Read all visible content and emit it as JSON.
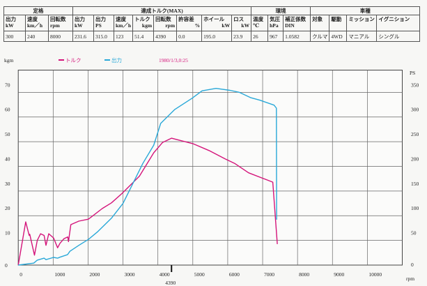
{
  "spec_table": {
    "groups": [
      "定格",
      "達成トルク(MAX)",
      "環境",
      "車種"
    ],
    "headers": [
      [
        "出力",
        "kW"
      ],
      [
        "速度",
        "km／h"
      ],
      [
        "回転数",
        "rpm"
      ],
      [
        "出力",
        "kW"
      ],
      [
        "出力",
        "PS"
      ],
      [
        "速度",
        "km／h"
      ],
      [
        "トルク",
        "kgm"
      ],
      [
        "回転数",
        "rpm"
      ],
      [
        "許容差",
        "%"
      ],
      [
        "ホイール",
        "kW"
      ],
      [
        "ロス",
        "kW"
      ],
      [
        "温度",
        "℃"
      ],
      [
        "気圧",
        "hPa"
      ],
      [
        "補正係数",
        "DIN"
      ],
      [
        "対象",
        ""
      ],
      [
        "駆動",
        ""
      ],
      [
        "ミッション",
        ""
      ],
      [
        "イグニション",
        ""
      ]
    ],
    "values": [
      "300",
      "240",
      "8000",
      "231.6",
      "315.0",
      "123",
      "51.4",
      "4390",
      "0.0",
      "195.0",
      "23.9",
      "26",
      "967",
      "1.0582",
      "クルマ",
      "4WD",
      "マニアル",
      "シングル"
    ]
  },
  "chart_data": {
    "type": "line",
    "title": "",
    "timestamp": "1980/1/3,0:25",
    "xlabel": "rpm",
    "ylabel_left": "kgm",
    "ylabel_right": "PS",
    "xlim": [
      0,
      11000
    ],
    "ylim_left": [
      0,
      79
    ],
    "ylim_right": [
      0,
      395
    ],
    "grid": true,
    "legend_placement": "top-left",
    "x_ticks": [
      "0",
      "1000",
      "2000",
      "3000",
      "4000",
      "5000",
      "6000",
      "7000",
      "8000",
      "9000",
      "10000"
    ],
    "y_ticks_left": [
      "0",
      "10",
      "20",
      "30",
      "40",
      "50",
      "60",
      "70"
    ],
    "y_ticks_right": [
      "0",
      "50",
      "100",
      "150",
      "200",
      "250",
      "300",
      "350"
    ],
    "marker": {
      "rpm": 4390,
      "label": "4390"
    },
    "series": [
      {
        "name": "トルク",
        "axis": "left",
        "color": "#d4147a",
        "x": [
          0,
          213,
          313,
          330,
          465,
          545,
          641,
          741,
          794,
          874,
          1012,
          1128,
          1194,
          1311,
          1419,
          1439,
          1507,
          1735,
          2010,
          2140,
          2405,
          2670,
          2970,
          3470,
          3880,
          4134,
          4390,
          4667,
          5000,
          5465,
          5930,
          6198,
          6597,
          7000,
          7290,
          7420
        ],
        "y": [
          0,
          17.5,
          12,
          12.5,
          4,
          10,
          12.7,
          12,
          8,
          12.7,
          11,
          7,
          8.8,
          10.7,
          11.4,
          9.5,
          16.4,
          17.8,
          18.6,
          20,
          22.9,
          25.2,
          29,
          36,
          45.5,
          49.7,
          51.4,
          50.4,
          49.2,
          46.4,
          43.0,
          41.2,
          37.4,
          35.2,
          33.6,
          8.5
        ]
      },
      {
        "name": "出力",
        "axis": "right",
        "color": "#29a8d8",
        "x": [
          0,
          445,
          545,
          741,
          794,
          1012,
          1128,
          1194,
          1411,
          1480,
          1735,
          2010,
          2280,
          2670,
          3000,
          3570,
          3880,
          4080,
          4480,
          4980,
          5265,
          5665,
          6065,
          6330,
          6663,
          6928,
          7327,
          7395,
          7400
        ],
        "y": [
          0,
          4,
          10,
          14,
          11,
          15.5,
          14,
          16,
          21,
          28,
          40,
          52,
          68,
          95,
          125,
          206,
          243,
          287,
          315,
          338,
          353,
          358,
          354,
          350,
          339,
          334,
          324,
          318,
          92
        ]
      }
    ]
  }
}
